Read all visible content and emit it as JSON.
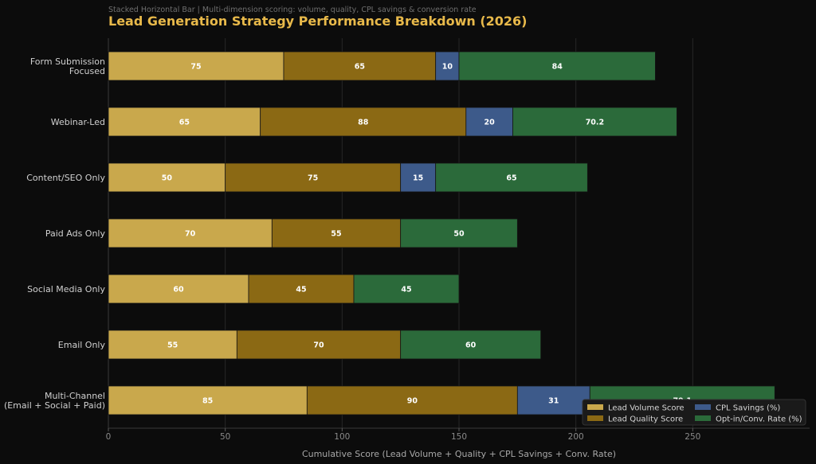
{
  "chart_data": {
    "type": "bar",
    "orientation": "horizontal",
    "stacked": true,
    "subtitle": "Stacked Horizontal Bar  |  Multi-dimension scoring: volume, quality, CPL savings & conversion rate",
    "title": "Lead Generation Strategy Performance Breakdown (2026)",
    "xlabel": "Cumulative Score (Lead Volume + Quality + CPL Savings + Conv. Rate)",
    "xlim": [
      0,
      300
    ],
    "xticks": [
      0,
      50,
      100,
      150,
      200,
      250
    ],
    "grid": true,
    "legend_position": "bottom-right",
    "categories": [
      [
        "Form Submission",
        "Focused"
      ],
      [
        "Webinar-Led"
      ],
      [
        "Content/SEO Only"
      ],
      [
        "Paid Ads Only"
      ],
      [
        "Social Media Only"
      ],
      [
        "Email Only"
      ],
      [
        "Multi-Channel",
        "(Email + Social + Paid)"
      ]
    ],
    "series": [
      {
        "name": "Lead Volume Score",
        "color": "#c9a84c",
        "values": [
          75,
          65,
          50,
          70,
          60,
          55,
          85
        ],
        "labels": [
          "75",
          "65",
          "50",
          "70",
          "60",
          "55",
          "85"
        ]
      },
      {
        "name": "Lead Quality Score",
        "color": "#8b6914",
        "values": [
          65,
          88,
          75,
          55,
          45,
          70,
          90
        ],
        "labels": [
          "65",
          "88",
          "75",
          "55",
          "45",
          "70",
          "90"
        ]
      },
      {
        "name": "CPL Savings (%)",
        "color": "#3d5a8a",
        "values": [
          10,
          20,
          15,
          0,
          0,
          0,
          31
        ],
        "labels": [
          "10",
          "20",
          "15",
          "",
          "",
          "",
          "31"
        ]
      },
      {
        "name": "Opt-in/Conv. Rate (%)",
        "color": "#2b6a3a",
        "values": [
          84,
          70.2,
          65,
          50,
          45,
          60,
          79.1
        ],
        "labels": [
          "84",
          "70.2",
          "65",
          "50",
          "45",
          "60",
          "79.1"
        ]
      }
    ]
  }
}
